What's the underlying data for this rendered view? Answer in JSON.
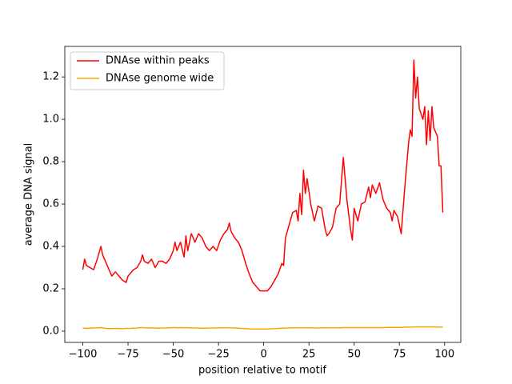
{
  "chart_data": {
    "type": "line",
    "xlabel": "position relative to motif",
    "ylabel": "average DNA signal",
    "x": [
      -100,
      -99,
      -98,
      -96,
      -94,
      -92,
      -90,
      -89,
      -88,
      -86,
      -84,
      -82,
      -80,
      -78,
      -76,
      -75,
      -74,
      -72,
      -70,
      -68,
      -67,
      -66,
      -64,
      -62,
      -60,
      -58,
      -56,
      -54,
      -52,
      -50,
      -49,
      -48,
      -46,
      -44,
      -43,
      -42,
      -40,
      -38,
      -36,
      -34,
      -32,
      -30,
      -28,
      -26,
      -24,
      -22,
      -20,
      -19,
      -18,
      -16,
      -14,
      -12,
      -10,
      -8,
      -6,
      -4,
      -2,
      0,
      2,
      4,
      6,
      8,
      10,
      11,
      12,
      14,
      16,
      18,
      19,
      20,
      21,
      22,
      23,
      24,
      26,
      28,
      30,
      32,
      34,
      35,
      36,
      38,
      40,
      42,
      44,
      46,
      48,
      49,
      50,
      52,
      54,
      56,
      58,
      59,
      60,
      62,
      64,
      66,
      68,
      70,
      71,
      72,
      74,
      76,
      78,
      80,
      81,
      82,
      83,
      84,
      85,
      86,
      88,
      89,
      90,
      91,
      92,
      93,
      94,
      96,
      97,
      98,
      99
    ],
    "series": [
      {
        "name": "DNAse within peaks",
        "color": "#ff0000",
        "values": [
          0.29,
          0.34,
          0.31,
          0.3,
          0.29,
          0.34,
          0.4,
          0.36,
          0.34,
          0.3,
          0.26,
          0.28,
          0.26,
          0.24,
          0.23,
          0.26,
          0.27,
          0.29,
          0.3,
          0.33,
          0.36,
          0.33,
          0.32,
          0.34,
          0.3,
          0.33,
          0.33,
          0.32,
          0.34,
          0.38,
          0.42,
          0.38,
          0.42,
          0.35,
          0.45,
          0.38,
          0.46,
          0.42,
          0.46,
          0.44,
          0.4,
          0.38,
          0.4,
          0.38,
          0.43,
          0.46,
          0.48,
          0.51,
          0.47,
          0.44,
          0.42,
          0.38,
          0.32,
          0.27,
          0.23,
          0.21,
          0.19,
          0.19,
          0.19,
          0.21,
          0.24,
          0.27,
          0.32,
          0.31,
          0.44,
          0.5,
          0.56,
          0.57,
          0.52,
          0.65,
          0.55,
          0.76,
          0.65,
          0.72,
          0.6,
          0.52,
          0.59,
          0.58,
          0.48,
          0.45,
          0.46,
          0.49,
          0.58,
          0.6,
          0.82,
          0.62,
          0.48,
          0.43,
          0.58,
          0.52,
          0.6,
          0.61,
          0.68,
          0.63,
          0.69,
          0.65,
          0.7,
          0.62,
          0.58,
          0.56,
          0.52,
          0.57,
          0.54,
          0.46,
          0.68,
          0.88,
          0.95,
          0.92,
          1.28,
          1.1,
          1.2,
          1.05,
          1.0,
          1.06,
          0.88,
          1.04,
          0.9,
          1.06,
          0.96,
          0.92,
          0.78,
          0.78,
          0.56
        ]
      },
      {
        "name": "DNAse genome wide",
        "color": "#ffa500",
        "values": [
          0.015,
          0.014,
          0.013,
          0.014,
          0.015,
          0.016,
          0.017,
          0.016,
          0.014,
          0.012,
          0.012,
          0.013,
          0.012,
          0.012,
          0.013,
          0.013,
          0.013,
          0.014,
          0.015,
          0.017,
          0.017,
          0.016,
          0.015,
          0.016,
          0.015,
          0.014,
          0.015,
          0.015,
          0.016,
          0.017,
          0.017,
          0.016,
          0.017,
          0.016,
          0.017,
          0.016,
          0.016,
          0.015,
          0.015,
          0.014,
          0.014,
          0.015,
          0.015,
          0.015,
          0.016,
          0.016,
          0.016,
          0.016,
          0.016,
          0.015,
          0.014,
          0.013,
          0.012,
          0.011,
          0.01,
          0.01,
          0.01,
          0.01,
          0.01,
          0.011,
          0.012,
          0.013,
          0.014,
          0.014,
          0.015,
          0.015,
          0.016,
          0.016,
          0.016,
          0.016,
          0.016,
          0.016,
          0.016,
          0.016,
          0.016,
          0.015,
          0.015,
          0.016,
          0.016,
          0.016,
          0.016,
          0.016,
          0.016,
          0.016,
          0.017,
          0.017,
          0.017,
          0.017,
          0.017,
          0.017,
          0.017,
          0.017,
          0.017,
          0.017,
          0.017,
          0.017,
          0.017,
          0.017,
          0.018,
          0.018,
          0.018,
          0.018,
          0.018,
          0.018,
          0.019,
          0.019,
          0.019,
          0.019,
          0.02,
          0.02,
          0.02,
          0.02,
          0.02,
          0.02,
          0.02,
          0.02,
          0.02,
          0.02,
          0.02,
          0.019,
          0.019,
          0.019,
          0.019
        ]
      }
    ],
    "xlim": [
      -109.95,
      108.95
    ],
    "ylim": [
      -0.053,
      1.344
    ],
    "xticks": [
      {
        "value": -100,
        "label": "−100"
      },
      {
        "value": -75,
        "label": "−75"
      },
      {
        "value": -50,
        "label": "−50"
      },
      {
        "value": -25,
        "label": "−25"
      },
      0,
      25,
      50,
      75,
      100
    ],
    "yticks": [
      {
        "value": 0,
        "label": "0.0"
      },
      0.2,
      0.4,
      0.6,
      0.8,
      {
        "value": 1,
        "label": "1.0"
      },
      1.2
    ],
    "legend": "upper left"
  }
}
